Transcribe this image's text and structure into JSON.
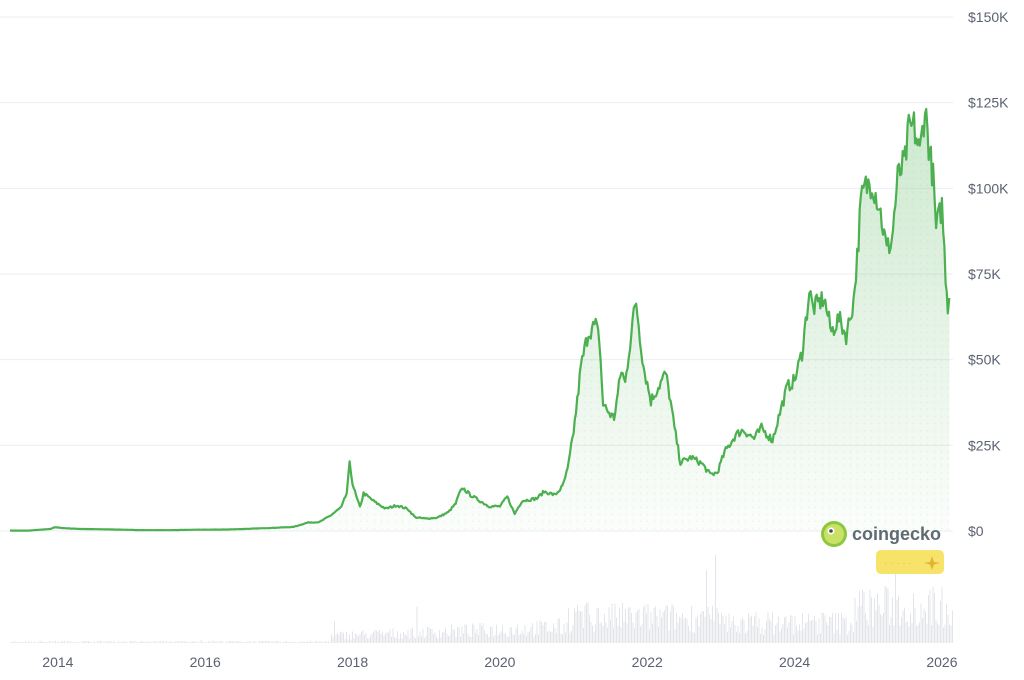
{
  "chart_data": {
    "type": "area",
    "x_axis": {
      "ticks": [
        "2014",
        "2016",
        "2018",
        "2020",
        "2022",
        "2024",
        "2026"
      ],
      "range": [
        2013.35,
        2026.15
      ]
    },
    "y_axis": {
      "ticks": [
        "$150K",
        "$125K",
        "$100K",
        "$75K",
        "$50K",
        "$25K",
        "$0"
      ],
      "tick_values": [
        150000,
        125000,
        100000,
        75000,
        50000,
        25000,
        0
      ],
      "range": [
        0,
        150000
      ]
    },
    "grid": true,
    "colors": {
      "line": "#4caf50",
      "area_top": "#4caf50",
      "volume": "#e3e5ea",
      "grid": "#eceef1",
      "badge": "#f7e36a"
    },
    "series": [
      {
        "points": [
          [
            2013.35,
            130
          ],
          [
            2013.6,
            110
          ],
          [
            2013.9,
            600
          ],
          [
            2013.95,
            1100
          ],
          [
            2014.1,
            800
          ],
          [
            2014.3,
            600
          ],
          [
            2014.6,
            500
          ],
          [
            2014.9,
            380
          ],
          [
            2015.1,
            250
          ],
          [
            2015.5,
            240
          ],
          [
            2015.9,
            380
          ],
          [
            2016.3,
            430
          ],
          [
            2016.6,
            650
          ],
          [
            2016.9,
            900
          ],
          [
            2017.0,
            1000
          ],
          [
            2017.2,
            1200
          ],
          [
            2017.4,
            2500
          ],
          [
            2017.55,
            2600
          ],
          [
            2017.7,
            4500
          ],
          [
            2017.85,
            7000
          ],
          [
            2017.92,
            11000
          ],
          [
            2017.96,
            19500
          ],
          [
            2018.0,
            14000
          ],
          [
            2018.05,
            10000
          ],
          [
            2018.1,
            7000
          ],
          [
            2018.15,
            11000
          ],
          [
            2018.3,
            8500
          ],
          [
            2018.45,
            6500
          ],
          [
            2018.6,
            7500
          ],
          [
            2018.75,
            6400
          ],
          [
            2018.85,
            4000
          ],
          [
            2019.0,
            3600
          ],
          [
            2019.15,
            3900
          ],
          [
            2019.3,
            5500
          ],
          [
            2019.4,
            8000
          ],
          [
            2019.45,
            11000
          ],
          [
            2019.5,
            12500
          ],
          [
            2019.6,
            10500
          ],
          [
            2019.75,
            8500
          ],
          [
            2019.85,
            7200
          ],
          [
            2020.0,
            7200
          ],
          [
            2020.1,
            10000
          ],
          [
            2020.2,
            5000
          ],
          [
            2020.3,
            8800
          ],
          [
            2020.5,
            9500
          ],
          [
            2020.6,
            11500
          ],
          [
            2020.75,
            10500
          ],
          [
            2020.85,
            13000
          ],
          [
            2020.92,
            18000
          ],
          [
            2021.0,
            29000
          ],
          [
            2021.05,
            38000
          ],
          [
            2021.1,
            48000
          ],
          [
            2021.2,
            58000
          ],
          [
            2021.3,
            60000
          ],
          [
            2021.35,
            56000
          ],
          [
            2021.4,
            37000
          ],
          [
            2021.5,
            34000
          ],
          [
            2021.55,
            33000
          ],
          [
            2021.6,
            40000
          ],
          [
            2021.65,
            47000
          ],
          [
            2021.7,
            43000
          ],
          [
            2021.8,
            61000
          ],
          [
            2021.85,
            67000
          ],
          [
            2021.9,
            57000
          ],
          [
            2021.95,
            48000
          ],
          [
            2022.05,
            38000
          ],
          [
            2022.15,
            42000
          ],
          [
            2022.25,
            46000
          ],
          [
            2022.3,
            40000
          ],
          [
            2022.37,
            30000
          ],
          [
            2022.45,
            20000
          ],
          [
            2022.6,
            21500
          ],
          [
            2022.75,
            19500
          ],
          [
            2022.85,
            16500
          ],
          [
            2022.95,
            17000
          ],
          [
            2023.05,
            23000
          ],
          [
            2023.2,
            28000
          ],
          [
            2023.3,
            29500
          ],
          [
            2023.45,
            27000
          ],
          [
            2023.55,
            30000
          ],
          [
            2023.7,
            26500
          ],
          [
            2023.8,
            34500
          ],
          [
            2023.9,
            42000
          ],
          [
            2024.0,
            44000
          ],
          [
            2024.1,
            52000
          ],
          [
            2024.2,
            70000
          ],
          [
            2024.25,
            65000
          ],
          [
            2024.4,
            68000
          ],
          [
            2024.5,
            58000
          ],
          [
            2024.6,
            62000
          ],
          [
            2024.7,
            57000
          ],
          [
            2024.8,
            67000
          ],
          [
            2024.85,
            80000
          ],
          [
            2024.9,
            96000
          ],
          [
            2024.95,
            100000
          ],
          [
            2025.05,
            102000
          ],
          [
            2025.15,
            95000
          ],
          [
            2025.25,
            82000
          ],
          [
            2025.32,
            85000
          ],
          [
            2025.4,
            103000
          ],
          [
            2025.5,
            108000
          ],
          [
            2025.55,
            117000
          ],
          [
            2025.62,
            118000
          ],
          [
            2025.7,
            110000
          ],
          [
            2025.77,
            124000
          ],
          [
            2025.82,
            113000
          ],
          [
            2025.88,
            103000
          ],
          [
            2025.92,
            88000
          ],
          [
            2026.0,
            95000
          ],
          [
            2026.05,
            75000
          ],
          [
            2026.08,
            66000
          ],
          [
            2026.1,
            68000
          ]
        ]
      }
    ]
  },
  "watermark": {
    "logo_text": "coingecko"
  }
}
